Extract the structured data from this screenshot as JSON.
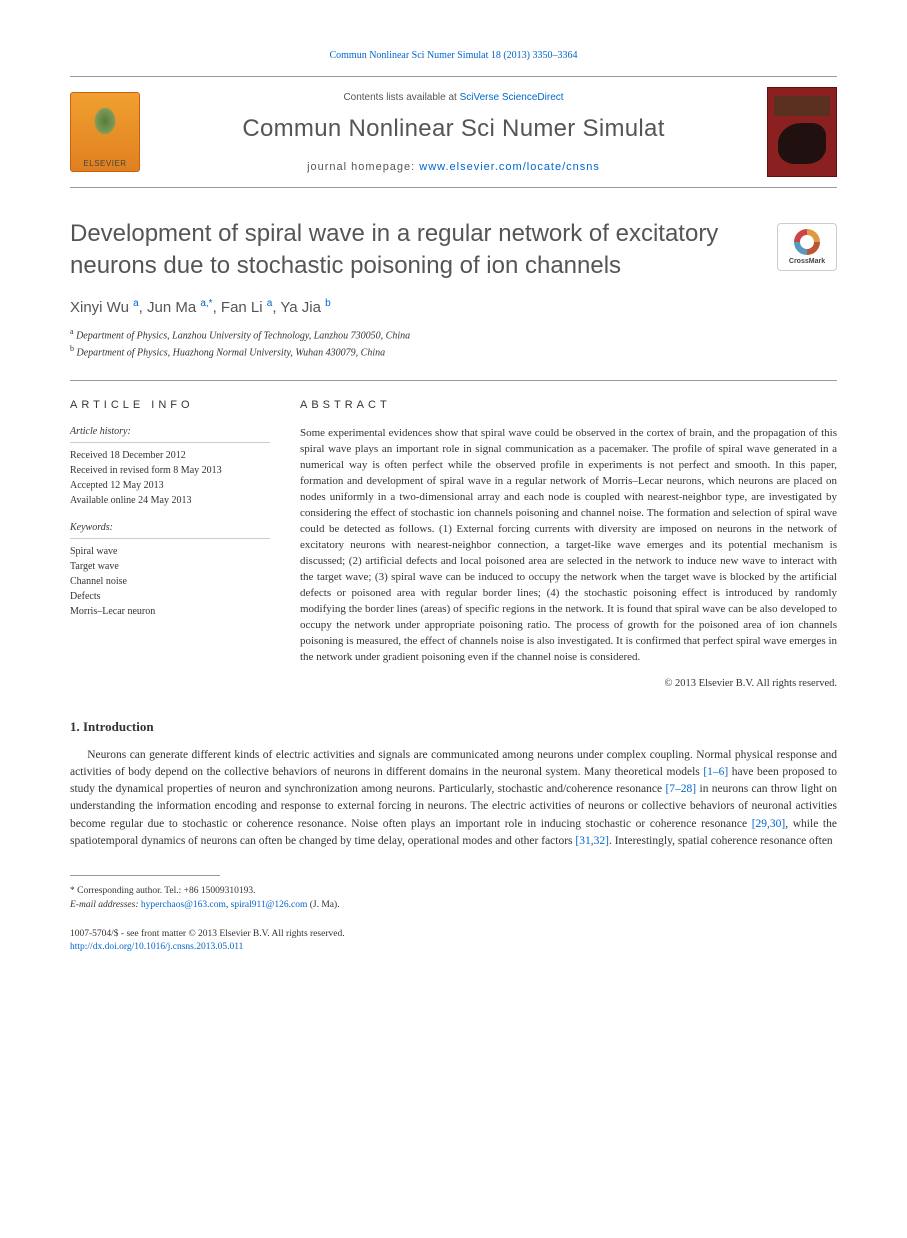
{
  "header": {
    "citation_prefix": "Commun Nonlinear Sci Numer Simulat 18 (2013) 3350–3364",
    "contents_line": "Contents lists available at ",
    "contents_link": "SciVerse ScienceDirect",
    "journal_name": "Commun Nonlinear Sci Numer Simulat",
    "homepage_label": "journal homepage: ",
    "homepage_link": "www.elsevier.com/locate/cnsns",
    "elsevier_label": "ELSEVIER"
  },
  "crossmark": {
    "label": "CrossMark"
  },
  "title": "Development of spiral wave in a regular network of excitatory neurons due to stochastic poisoning of ion channels",
  "authors_html": "Xinyi Wu <sup>a</sup>, Jun Ma <sup>a,*</sup>, Fan Li <sup>a</sup>, Ya Jia <sup>b</sup>",
  "affiliations": [
    {
      "sup": "a",
      "text": "Department of Physics, Lanzhou University of Technology, Lanzhou 730050, China"
    },
    {
      "sup": "b",
      "text": "Department of Physics, Huazhong Normal University, Wuhan 430079, China"
    }
  ],
  "article_info": {
    "heading": "ARTICLE INFO",
    "history_label": "Article history:",
    "history_lines": [
      "Received 18 December 2012",
      "Received in revised form 8 May 2013",
      "Accepted 12 May 2013",
      "Available online 24 May 2013"
    ],
    "keywords_label": "Keywords:",
    "keywords": [
      "Spiral wave",
      "Target wave",
      "Channel noise",
      "Defects",
      "Morris–Lecar neuron"
    ]
  },
  "abstract": {
    "heading": "ABSTRACT",
    "text": "Some experimental evidences show that spiral wave could be observed in the cortex of brain, and the propagation of this spiral wave plays an important role in signal communication as a pacemaker. The profile of spiral wave generated in a numerical way is often perfect while the observed profile in experiments is not perfect and smooth. In this paper, formation and development of spiral wave in a regular network of Morris–Lecar neurons, which neurons are placed on nodes uniformly in a two-dimensional array and each node is coupled with nearest-neighbor type, are investigated by considering the effect of stochastic ion channels poisoning and channel noise. The formation and selection of spiral wave could be detected as follows. (1) External forcing currents with diversity are imposed on neurons in the network of excitatory neurons with nearest-neighbor connection, a target-like wave emerges and its potential mechanism is discussed; (2) artificial defects and local poisoned area are selected in the network to induce new wave to interact with the target wave; (3) spiral wave can be induced to occupy the network when the target wave is blocked by the artificial defects or poisoned area with regular border lines; (4) the stochastic poisoning effect is introduced by randomly modifying the border lines (areas) of specific regions in the network. It is found that spiral wave can be also developed to occupy the network under appropriate poisoning ratio. The process of growth for the poisoned area of ion channels poisoning is measured, the effect of channels noise is also investigated. It is confirmed that perfect spiral wave emerges in the network under gradient poisoning even if the channel noise is considered.",
    "copyright": "© 2013 Elsevier B.V. All rights reserved."
  },
  "section1": {
    "heading": "1. Introduction",
    "paragraph": "Neurons can generate different kinds of electric activities and signals are communicated among neurons under complex coupling. Normal physical response and activities of body depend on the collective behaviors of neurons in different domains in the neuronal system. Many theoretical models [1–6] have been proposed to study the dynamical properties of neuron and synchronization among neurons. Particularly, stochastic and/coherence resonance [7–28] in neurons can throw light on understanding the information encoding and response to external forcing in neurons. The electric activities of neurons or collective behaviors of neuronal activities become regular due to stochastic or coherence resonance. Noise often plays an important role in inducing stochastic or coherence resonance [29,30], while the spatiotemporal dynamics of neurons can often be changed by time delay, operational modes and other factors [31,32]. Interestingly, spatial coherence resonance often",
    "refs": [
      "[1–6]",
      "[7–28]",
      "[29,30]",
      "[31,32]"
    ]
  },
  "footer": {
    "corresponding_label": "* Corresponding author. Tel.: +86 15009310193.",
    "email_label": "E-mail addresses: ",
    "emails": [
      "hyperchaos@163.com",
      "spiral911@126.com"
    ],
    "email_suffix": " (J. Ma).",
    "issn_line": "1007-5704/$ - see front matter © 2013 Elsevier B.V. All rights reserved.",
    "doi": "http://dx.doi.org/10.1016/j.cnsns.2013.05.011"
  }
}
